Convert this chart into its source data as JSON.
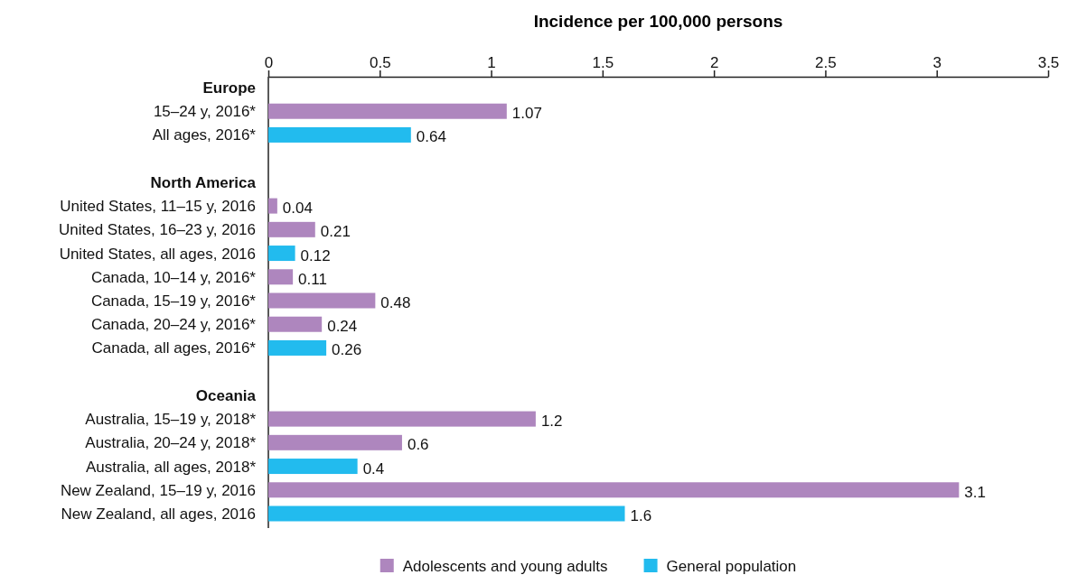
{
  "chart_data": {
    "type": "bar",
    "orientation": "horizontal",
    "xlabel": "Incidence per 100,000 persons",
    "categories": [
      "Europe",
      "15–24 y, 2016*",
      "All ages, 2016*",
      null,
      "North America",
      "United States, 11–15 y, 2016",
      "United States, 16–23 y, 2016",
      "United States, all ages, 2016",
      "Canada, 10–14 y, 2016*",
      "Canada, 15–19 y, 2016*",
      "Canada, 20–24 y, 2016*",
      "Canada, all ages, 2016*",
      null,
      "Oceania",
      "Australia, 15–19 y, 2018*",
      "Australia, 20–24 y, 2018*",
      "Australia, all ages, 2018*",
      "New Zealand, 15–19 y, 2016",
      "New Zealand, all ages, 2016"
    ],
    "series": [
      {
        "name": "Adolescents and young adults",
        "color": "#ae86be",
        "values": [
          null,
          1.07,
          null,
          null,
          null,
          0.04,
          0.21,
          null,
          0.11,
          0.48,
          0.24,
          null,
          null,
          null,
          1.2,
          0.6,
          null,
          3.1,
          null
        ]
      },
      {
        "name": "General population",
        "color": "#22bbee",
        "values": [
          null,
          null,
          0.64,
          null,
          null,
          null,
          null,
          0.12,
          null,
          null,
          null,
          0.26,
          null,
          null,
          null,
          null,
          0.4,
          null,
          1.6
        ]
      }
    ],
    "xlim": [
      0,
      3.5
    ],
    "xticks": [
      0,
      0.5,
      1,
      1.5,
      2,
      2.5,
      3,
      3.5
    ],
    "data_labels": true,
    "legend": "bottom",
    "grid": false
  }
}
